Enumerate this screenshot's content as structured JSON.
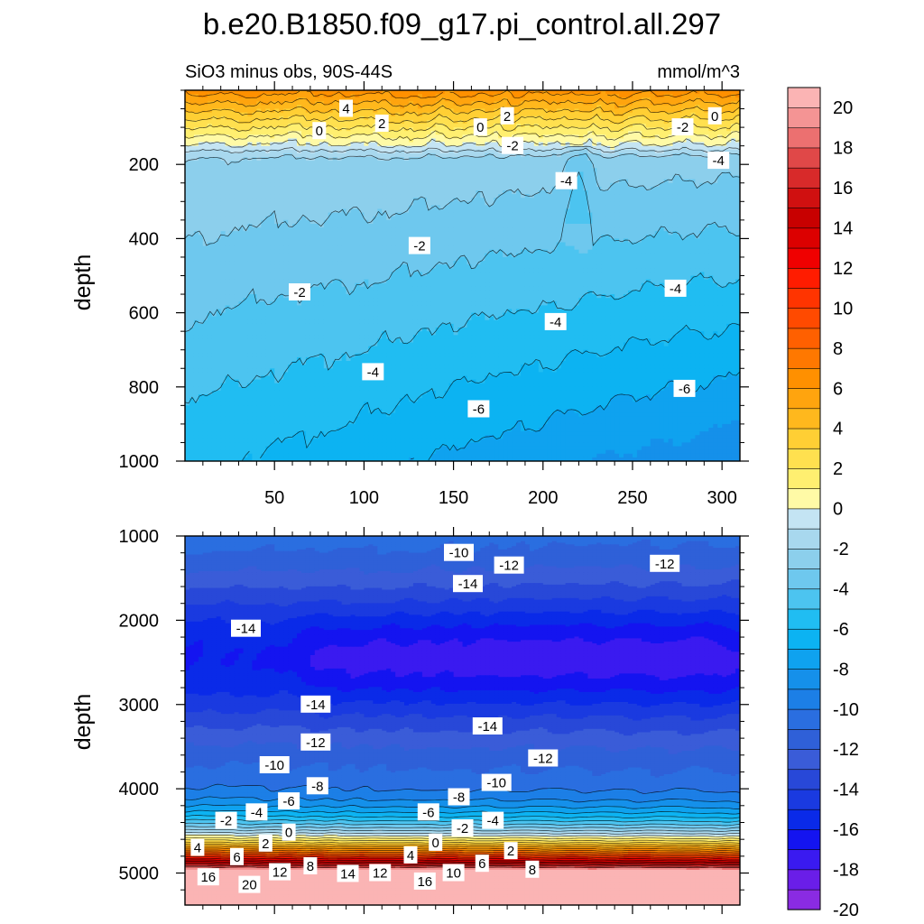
{
  "chart_data": {
    "type": "filled-contour",
    "title": "b.e20.B1850.f09_g17.pi_control.all.297",
    "subtitle_left": "SiO3 minus obs, 90S-44S",
    "subtitle_right": "mmol/m^3",
    "colorbar": {
      "levels": [
        -20,
        -19,
        -18,
        -17,
        -16,
        -15,
        -14,
        -13,
        -12,
        -11,
        -10,
        -9,
        -8,
        -7,
        -6,
        -5,
        -4,
        -3,
        -2,
        -1,
        0,
        1,
        2,
        3,
        4,
        5,
        6,
        7,
        8,
        9,
        10,
        11,
        12,
        13,
        14,
        15,
        16,
        17,
        18,
        19,
        20
      ],
      "tick_labels": [
        "20",
        "18",
        "16",
        "14",
        "12",
        "10",
        "8",
        "6",
        "4",
        "2",
        "0",
        "-2",
        "-4",
        "-6",
        "-8",
        "-10",
        "-12",
        "-14",
        "-16",
        "-18",
        "-20"
      ],
      "colors": [
        "#8a2be2",
        "#6a1ee8",
        "#3a1af0",
        "#1414f0",
        "#0a2ae8",
        "#1a3ae0",
        "#2848d8",
        "#3a5cd8",
        "#2f60d8",
        "#2a6ee0",
        "#1c7fe6",
        "#1590ea",
        "#0fa2ef",
        "#0cb3f2",
        "#20bdf2",
        "#4cc4f0",
        "#6ec8ee",
        "#8ccfec",
        "#a8d8ee",
        "#c4e4f3",
        "#fffaa6",
        "#ffef70",
        "#ffe04f",
        "#ffcf34",
        "#ffb81d",
        "#ffa40e",
        "#ff9000",
        "#ff7800",
        "#ff6000",
        "#ff4a00",
        "#ff3400",
        "#ff1c00",
        "#f00000",
        "#dc0000",
        "#c80000",
        "#d01010",
        "#d82a2a",
        "#e04848",
        "#ec7070",
        "#f49494",
        "#fbb4b4"
      ]
    },
    "panels": [
      {
        "name": "upper",
        "ylabel": "depth",
        "xlim": [
          0,
          310
        ],
        "ylim": [
          0,
          1000
        ],
        "x_ticks": [
          50,
          100,
          150,
          200,
          250,
          300
        ],
        "x_tick_labels": [
          "50",
          "100",
          "150",
          "200",
          "250",
          "300"
        ],
        "y_ticks": [
          200,
          400,
          600,
          800,
          1000
        ],
        "y_tick_labels": [
          "200",
          "400",
          "600",
          "800",
          "1000"
        ],
        "contour_labels": [
          {
            "x": 90,
            "y": 50,
            "text": "4"
          },
          {
            "x": 110,
            "y": 90,
            "text": "2"
          },
          {
            "x": 75,
            "y": 110,
            "text": "0"
          },
          {
            "x": 180,
            "y": 70,
            "text": "2"
          },
          {
            "x": 165,
            "y": 100,
            "text": "0"
          },
          {
            "x": 183,
            "y": 150,
            "text": "-2"
          },
          {
            "x": 213,
            "y": 245,
            "text": "-4"
          },
          {
            "x": 278,
            "y": 100,
            "text": "-2"
          },
          {
            "x": 296,
            "y": 70,
            "text": "0"
          },
          {
            "x": 298,
            "y": 190,
            "text": "-4"
          },
          {
            "x": 131,
            "y": 420,
            "text": "-2"
          },
          {
            "x": 64,
            "y": 545,
            "text": "-2"
          },
          {
            "x": 274,
            "y": 535,
            "text": "-4"
          },
          {
            "x": 207,
            "y": 625,
            "text": "-4"
          },
          {
            "x": 105,
            "y": 760,
            "text": "-4"
          },
          {
            "x": 279,
            "y": 805,
            "text": "-6"
          },
          {
            "x": 164,
            "y": 860,
            "text": "-6"
          }
        ]
      },
      {
        "name": "lower",
        "ylabel": "depth",
        "xlim": [
          0,
          310
        ],
        "ylim": [
          1000,
          5380
        ],
        "y_ticks": [
          1000,
          2000,
          3000,
          4000,
          5000
        ],
        "y_tick_labels": [
          "1000",
          "2000",
          "3000",
          "4000",
          "5000"
        ],
        "contour_labels": [
          {
            "x": 153,
            "y": 1200,
            "text": "-10"
          },
          {
            "x": 181,
            "y": 1350,
            "text": "-12"
          },
          {
            "x": 158,
            "y": 1570,
            "text": "-14"
          },
          {
            "x": 268,
            "y": 1330,
            "text": "-12"
          },
          {
            "x": 34,
            "y": 2100,
            "text": "-14"
          },
          {
            "x": 73,
            "y": 3000,
            "text": "-14"
          },
          {
            "x": 169,
            "y": 3260,
            "text": "-14"
          },
          {
            "x": 73,
            "y": 3450,
            "text": "-12"
          },
          {
            "x": 200,
            "y": 3640,
            "text": "-12"
          },
          {
            "x": 50,
            "y": 3720,
            "text": "-10"
          },
          {
            "x": 174,
            "y": 3930,
            "text": "-10"
          },
          {
            "x": 74,
            "y": 3970,
            "text": "-8"
          },
          {
            "x": 153,
            "y": 4100,
            "text": "-8"
          },
          {
            "x": 58,
            "y": 4150,
            "text": "-6"
          },
          {
            "x": 136,
            "y": 4280,
            "text": "-6"
          },
          {
            "x": 40,
            "y": 4280,
            "text": "-4"
          },
          {
            "x": 172,
            "y": 4380,
            "text": "-4"
          },
          {
            "x": 23,
            "y": 4380,
            "text": "-2"
          },
          {
            "x": 155,
            "y": 4470,
            "text": "-2"
          },
          {
            "x": 58,
            "y": 4520,
            "text": "0"
          },
          {
            "x": 140,
            "y": 4640,
            "text": "0"
          },
          {
            "x": 7,
            "y": 4700,
            "text": "4"
          },
          {
            "x": 45,
            "y": 4650,
            "text": "2"
          },
          {
            "x": 29,
            "y": 4810,
            "text": "6"
          },
          {
            "x": 126,
            "y": 4790,
            "text": "4"
          },
          {
            "x": 182,
            "y": 4740,
            "text": "2"
          },
          {
            "x": 70,
            "y": 4920,
            "text": "8"
          },
          {
            "x": 166,
            "y": 4890,
            "text": "6"
          },
          {
            "x": 194,
            "y": 4960,
            "text": "8"
          },
          {
            "x": 53,
            "y": 4990,
            "text": "12"
          },
          {
            "x": 91,
            "y": 5010,
            "text": "14"
          },
          {
            "x": 109,
            "y": 5000,
            "text": "12"
          },
          {
            "x": 150,
            "y": 5000,
            "text": "10"
          },
          {
            "x": 13,
            "y": 5050,
            "text": "16"
          },
          {
            "x": 134,
            "y": 5100,
            "text": "16"
          },
          {
            "x": 36,
            "y": 5140,
            "text": "20"
          }
        ]
      }
    ]
  }
}
